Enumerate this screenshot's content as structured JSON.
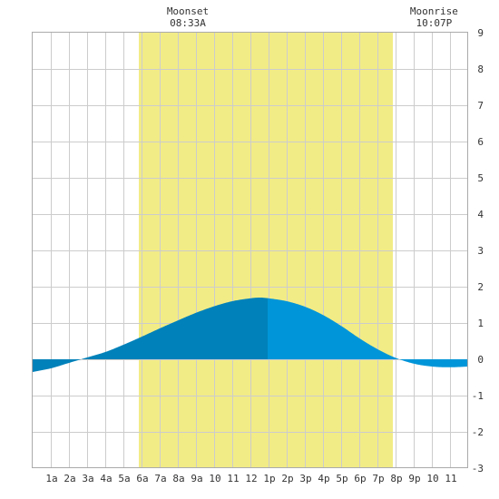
{
  "chart_data": {
    "type": "area",
    "title": "",
    "xlabel": "",
    "ylabel": "",
    "x_range": [
      0,
      24
    ],
    "ylim": [
      -3,
      9
    ],
    "y_ticks": [
      "9",
      "8",
      "7",
      "6",
      "5",
      "4",
      "3",
      "2",
      "1",
      "0",
      "-1",
      "-2",
      "-3"
    ],
    "x_tick_labels": [
      "1a",
      "2a",
      "3a",
      "4a",
      "5a",
      "6a",
      "7a",
      "8a",
      "9a",
      "10",
      "11",
      "12",
      "1p",
      "2p",
      "3p",
      "4p",
      "5p",
      "6p",
      "7p",
      "8p",
      "9p",
      "10",
      "11"
    ],
    "grid": true,
    "daylight": {
      "start": 5.85,
      "end": 19.85
    },
    "events": [
      {
        "title": "Moonset",
        "time": "08:33A",
        "x": 8.55
      },
      {
        "title": "Moonrise",
        "time": "10:07P",
        "x": 22.12
      }
    ],
    "series": [
      {
        "x": [
          0,
          1,
          2,
          3,
          4,
          5,
          6,
          7,
          8,
          9,
          10,
          11,
          12,
          12.5,
          13,
          14,
          15,
          16,
          17,
          18,
          19,
          20,
          21,
          22,
          23,
          24
        ],
        "values": [
          -0.35,
          -0.25,
          -0.1,
          0.05,
          0.2,
          0.4,
          0.62,
          0.85,
          1.07,
          1.28,
          1.46,
          1.6,
          1.68,
          1.7,
          1.68,
          1.6,
          1.45,
          1.22,
          0.92,
          0.58,
          0.28,
          0.04,
          -0.12,
          -0.2,
          -0.22,
          -0.2
        ],
        "split_x": 12.95
      }
    ],
    "colors": {
      "daylight": "#f2ec86",
      "fill_before": "#0081b9",
      "fill_after": "#0095d8",
      "grid": "#cccccc",
      "text": "#333333"
    }
  }
}
